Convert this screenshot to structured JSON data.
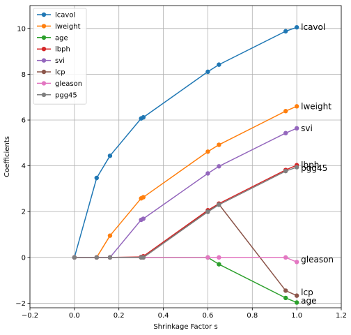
{
  "chart_data": {
    "type": "line",
    "title": "",
    "xlabel": "Shrinkage Factor s",
    "ylabel": "Coefficients",
    "xlim": [
      -0.2,
      1.2
    ],
    "ylim": [
      -2.2,
      11.0
    ],
    "xticks": [
      -0.2,
      0.0,
      0.2,
      0.4,
      0.6,
      0.8,
      1.0,
      1.2
    ],
    "xtick_labels": [
      "−0.2",
      "0.0",
      "0.2",
      "0.4",
      "0.6",
      "0.8",
      "1.0",
      "1.2"
    ],
    "yticks": [
      -2,
      0,
      2,
      4,
      6,
      8,
      10
    ],
    "ytick_labels": [
      "−2",
      "0",
      "2",
      "4",
      "6",
      "8",
      "10"
    ],
    "grid": true,
    "legend_position": "top-left",
    "x": [
      0.0,
      0.1,
      0.16,
      0.3,
      0.31,
      0.6,
      0.65,
      0.95,
      1.0
    ],
    "series": [
      {
        "name": "lcavol",
        "color": "#1f77b4",
        "end_label": "lcavol",
        "values": [
          0,
          3.47,
          4.44,
          6.07,
          6.12,
          8.11,
          8.42,
          9.88,
          10.05
        ]
      },
      {
        "name": "lweight",
        "color": "#ff7f0e",
        "end_label": "lweight",
        "values": [
          0,
          0,
          0.95,
          2.58,
          2.63,
          4.62,
          4.92,
          6.39,
          6.6
        ]
      },
      {
        "name": "age",
        "color": "#2ca02c",
        "end_label": "age",
        "values": [
          0,
          0,
          0,
          0,
          0,
          0,
          -0.3,
          -1.77,
          -1.97
        ]
      },
      {
        "name": "lbph",
        "color": "#d62728",
        "end_label": "lbph",
        "values": [
          0,
          0,
          0,
          0.02,
          0.05,
          2.06,
          2.35,
          3.82,
          4.03
        ]
      },
      {
        "name": "svi",
        "color": "#9467bd",
        "end_label": "svi",
        "values": [
          0,
          0,
          0,
          1.64,
          1.69,
          3.67,
          3.98,
          5.43,
          5.64
        ]
      },
      {
        "name": "lcp",
        "color": "#8c564b",
        "end_label": "lcp",
        "values": [
          0,
          0,
          0,
          0,
          0,
          2.01,
          2.32,
          -1.45,
          -1.67
        ]
      },
      {
        "name": "gleason",
        "color": "#e377c2",
        "end_label": "gleason",
        "values": [
          0,
          0,
          0,
          0,
          0,
          0,
          0,
          0,
          -0.2
        ]
      },
      {
        "name": "pgg45",
        "color": "#7f7f7f",
        "end_label": "pgg45",
        "values": [
          0,
          0,
          0,
          0,
          0,
          1.99,
          2.3,
          3.77,
          3.94
        ]
      }
    ]
  }
}
